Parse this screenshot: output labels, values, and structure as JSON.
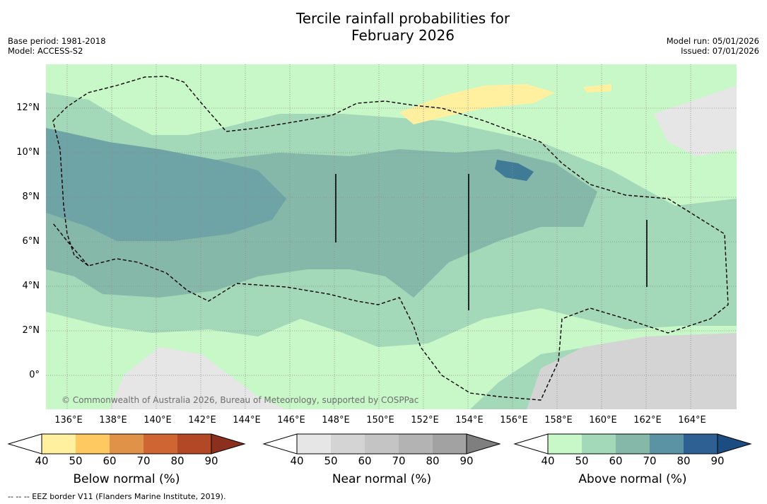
{
  "title_line1": "Tercile rainfall probabilities for",
  "title_line2": "February 2026",
  "meta_left": [
    "Base period: 1981-2018",
    "Model: ACCESS-S2"
  ],
  "meta_right": [
    "Model run: 05/01/2026",
    "Issued: 07/01/2026"
  ],
  "map": {
    "copyright": "© Commonwealth of Australia 2026, Bureau of Meteorology, supported by COSPPac",
    "lat_labels": [
      "12°N",
      "10°N",
      "8°N",
      "6°N",
      "4°N",
      "2°N",
      "0°"
    ],
    "lon_labels": [
      "136°E",
      "138°E",
      "140°E",
      "142°E",
      "144°E",
      "146°E",
      "148°E",
      "150°E",
      "152°E",
      "154°E",
      "156°E",
      "158°E",
      "160°E",
      "162°E",
      "164°E"
    ]
  },
  "colorbars": [
    {
      "label": "Below normal (%)",
      "ticks": [
        "40",
        "50",
        "60",
        "70",
        "80",
        "90"
      ],
      "colors": [
        "#fff0a0",
        "#fdc960",
        "#e09248",
        "#cf6532",
        "#b34826",
        "#8c2f1e"
      ]
    },
    {
      "label": "Near normal (%)",
      "ticks": [
        "40",
        "50",
        "60",
        "70",
        "80",
        "90"
      ],
      "colors": [
        "#e6e6e6",
        "#d4d4d4",
        "#c4c4c4",
        "#b3b3b3",
        "#a2a2a2",
        "#7f7f7f"
      ]
    },
    {
      "label": "Above normal (%)",
      "ticks": [
        "40",
        "50",
        "60",
        "70",
        "80",
        "90"
      ],
      "colors": [
        "#c8f7c8",
        "#a3d9b8",
        "#86b8aa",
        "#5c93a4",
        "#2f6094",
        "#1b4c82"
      ]
    }
  ],
  "footer": "--  --  -- EEZ border V11 (Flanders Marine Institute, 2019)."
}
